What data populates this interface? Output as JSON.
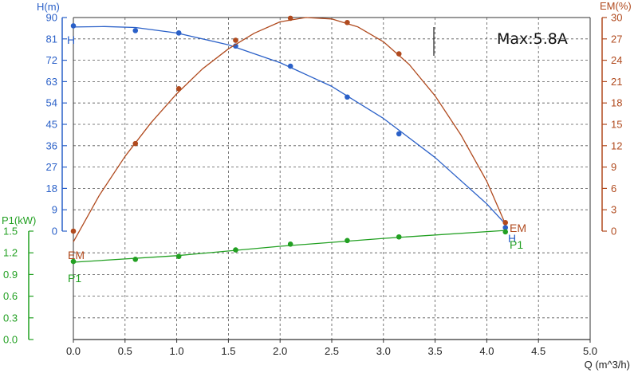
{
  "chart_data": {
    "type": "line",
    "annotation": "Max:5.8A",
    "x_axis": {
      "label": "Q (m^3/h)",
      "range": [
        0,
        5.0
      ],
      "ticks": [
        "0.0",
        "0.5",
        "1.0",
        "1.5",
        "2.0",
        "2.5",
        "3.0",
        "3.5",
        "4.0",
        "4.5",
        "5.0"
      ]
    },
    "y_axes": {
      "H": {
        "label": "H(m)",
        "range": [
          0,
          90
        ],
        "ticks": [
          "0",
          "9",
          "18",
          "27",
          "36",
          "45",
          "54",
          "63",
          "72",
          "81",
          "90"
        ],
        "color": "#2a60c8"
      },
      "EM": {
        "label": "EM(%)",
        "range": [
          0,
          30
        ],
        "ticks": [
          "0",
          "3",
          "6",
          "9",
          "12",
          "15",
          "18",
          "21",
          "24",
          "27",
          "30"
        ],
        "color": "#b04a1e"
      },
      "P1": {
        "label": "P1(kW)",
        "range": [
          0,
          1.5
        ],
        "ticks": [
          "0.0",
          "0.3",
          "0.6",
          "0.9",
          "1.2",
          "1.5"
        ],
        "color": "#22a022"
      }
    },
    "grid": true,
    "series": [
      {
        "name": "H",
        "axis": "H",
        "color": "#2a60c8",
        "curve_end_label": "H",
        "points": [
          [
            0.0,
            86.5
          ],
          [
            0.6,
            84.5
          ],
          [
            1.02,
            83.5
          ],
          [
            1.57,
            78.0
          ],
          [
            2.1,
            69.5
          ],
          [
            2.65,
            56.5
          ],
          [
            3.15,
            41.0
          ],
          [
            4.18,
            1.5
          ]
        ],
        "curve": [
          [
            0.0,
            86.0
          ],
          [
            0.3,
            86.2
          ],
          [
            0.6,
            85.8
          ],
          [
            1.0,
            83.5
          ],
          [
            1.5,
            78.5
          ],
          [
            2.0,
            71.0
          ],
          [
            2.5,
            61.0
          ],
          [
            3.0,
            47.5
          ],
          [
            3.5,
            31.0
          ],
          [
            4.0,
            11.5
          ],
          [
            4.18,
            3.0
          ]
        ]
      },
      {
        "name": "EM",
        "axis": "EM",
        "color": "#b04a1e",
        "curve_end_label": "EM",
        "points": [
          [
            0.0,
            0.0
          ],
          [
            0.6,
            12.3
          ],
          [
            1.02,
            20.0
          ],
          [
            1.57,
            26.8
          ],
          [
            2.1,
            29.9
          ],
          [
            2.65,
            29.3
          ],
          [
            3.15,
            24.9
          ],
          [
            4.18,
            1.2
          ]
        ],
        "curve": [
          [
            0.0,
            -1.5
          ],
          [
            0.25,
            5.0
          ],
          [
            0.5,
            10.5
          ],
          [
            0.75,
            15.2
          ],
          [
            1.0,
            19.3
          ],
          [
            1.25,
            22.8
          ],
          [
            1.5,
            25.6
          ],
          [
            1.75,
            27.8
          ],
          [
            2.0,
            29.4
          ],
          [
            2.25,
            30.0
          ],
          [
            2.5,
            29.8
          ],
          [
            2.75,
            28.7
          ],
          [
            3.0,
            26.6
          ],
          [
            3.25,
            23.4
          ],
          [
            3.5,
            19.0
          ],
          [
            3.75,
            13.5
          ],
          [
            4.0,
            7.0
          ],
          [
            4.18,
            1.0
          ]
        ]
      },
      {
        "name": "P1",
        "axis": "P1",
        "color": "#22a022",
        "curve_end_label": "P1",
        "points": [
          [
            0.0,
            1.08
          ],
          [
            0.6,
            1.11
          ],
          [
            1.02,
            1.15
          ],
          [
            1.57,
            1.24
          ],
          [
            2.1,
            1.32
          ],
          [
            2.65,
            1.37
          ],
          [
            3.15,
            1.42
          ],
          [
            4.18,
            1.49
          ]
        ],
        "curve": [
          [
            0.0,
            1.07
          ],
          [
            1.0,
            1.16
          ],
          [
            2.0,
            1.29
          ],
          [
            3.0,
            1.4
          ],
          [
            4.18,
            1.51
          ]
        ]
      }
    ]
  }
}
